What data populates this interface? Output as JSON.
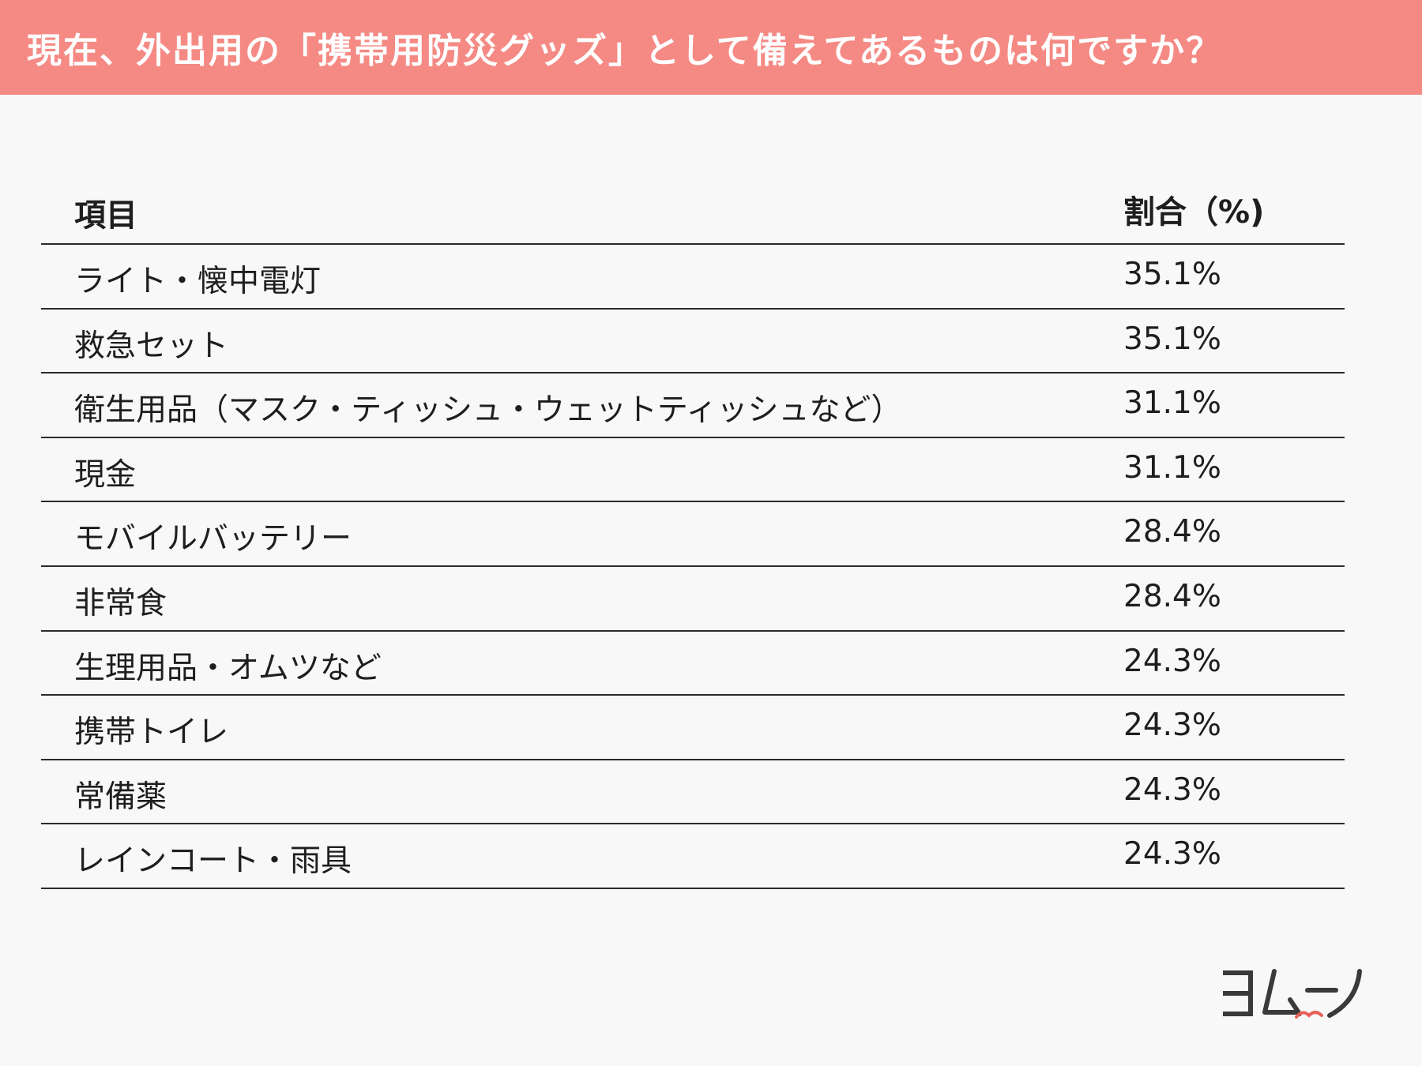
{
  "header": {
    "title": "現在、外出用の「携帯用防災グッズ」として備えてあるものは何ですか？"
  },
  "chart_data": {
    "type": "table",
    "columns": [
      "項目",
      "割合（%)"
    ],
    "rows": [
      {
        "item": "ライト・懐中電灯",
        "rate": "35.1%",
        "value": 35.1
      },
      {
        "item": "救急セット",
        "rate": "35.1%",
        "value": 35.1
      },
      {
        "item": "衛生用品（マスク・ティッシュ・ウェットティッシュなど）",
        "rate": "31.1%",
        "value": 31.1
      },
      {
        "item": "現金",
        "rate": "31.1%",
        "value": 31.1
      },
      {
        "item": "モバイルバッテリー",
        "rate": "28.4%",
        "value": 28.4
      },
      {
        "item": "非常食",
        "rate": "28.4%",
        "value": 28.4
      },
      {
        "item": "生理用品・オムツなど",
        "rate": "24.3%",
        "value": 24.3
      },
      {
        "item": "携帯トイレ",
        "rate": "24.3%",
        "value": 24.3
      },
      {
        "item": "常備薬",
        "rate": "24.3%",
        "value": 24.3
      },
      {
        "item": "レインコート・雨具",
        "rate": "24.3%",
        "value": 24.3
      }
    ]
  },
  "logo": {
    "text": "ヨムーノ",
    "icon": "yomuno-logo-icon",
    "color": "#3a3a3a",
    "accent": "#e8605a"
  },
  "colors": {
    "header_bg": "#f58a84",
    "background": "#f8f8f8",
    "rule": "#2a2a2a"
  }
}
